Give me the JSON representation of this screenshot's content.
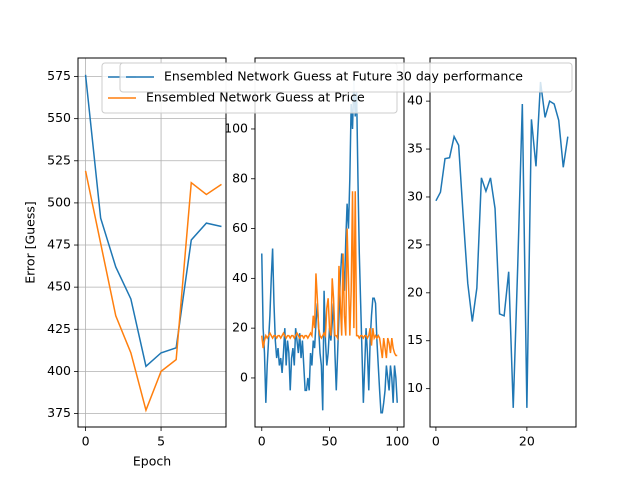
{
  "chart_data": [
    {
      "type": "line",
      "x": [
        0,
        1,
        2,
        3,
        4,
        5,
        6,
        7,
        8,
        9
      ],
      "series": [
        {
          "color": "#1f77b4",
          "values": [
            576,
            491,
            462,
            443,
            403,
            411,
            414,
            478,
            488,
            486
          ]
        },
        {
          "name": "Ensembled Network Guess at Price",
          "color": "#ff7f0e",
          "values": [
            519,
            476,
            433,
            411,
            377,
            400,
            407,
            512,
            505,
            511
          ]
        }
      ],
      "xlabel": "Epoch",
      "ylabel": "Error [Guess]",
      "xlim": [
        -0.5,
        9.3
      ],
      "xticks": [
        0,
        5
      ],
      "ylim": [
        367,
        586
      ],
      "yticks": [
        375,
        400,
        425,
        450,
        475,
        500,
        525,
        550,
        575
      ],
      "grid": true
    },
    {
      "type": "line",
      "x": [
        0,
        1,
        2,
        3,
        4,
        5,
        6,
        7,
        8,
        9,
        10,
        11,
        12,
        13,
        14,
        15,
        16,
        17,
        18,
        19,
        20,
        21,
        22,
        23,
        24,
        25,
        26,
        27,
        28,
        29,
        30,
        31,
        32,
        33,
        34,
        35,
        36,
        37,
        38,
        39,
        40,
        41,
        42,
        43,
        44,
        45,
        46,
        47,
        48,
        49,
        50,
        51,
        52,
        53,
        54,
        55,
        56,
        57,
        58,
        59,
        60,
        61,
        62,
        63,
        64,
        65,
        66,
        67,
        68,
        69,
        70,
        71,
        72,
        73,
        74,
        75,
        76,
        77,
        78,
        79,
        80,
        81,
        82,
        83,
        84,
        85,
        86,
        87,
        88,
        89,
        90,
        91,
        92,
        93,
        94,
        95,
        96,
        97,
        98,
        99,
        100
      ],
      "series": [
        {
          "color": "#1f77b4",
          "values": [
            50,
            20,
            10,
            -10,
            5,
            15,
            25,
            40,
            52,
            30,
            15,
            8,
            12,
            5,
            8,
            2,
            10,
            20,
            5,
            15,
            10,
            -5,
            8,
            12,
            5,
            20,
            15,
            10,
            18,
            8,
            15,
            5,
            -5,
            -5,
            0,
            -5,
            10,
            5,
            15,
            12,
            22,
            30,
            20,
            10,
            5,
            -13,
            35,
            15,
            5,
            10,
            20,
            15,
            22,
            30,
            10,
            -5,
            10,
            25,
            40,
            50,
            45,
            35,
            55,
            70,
            60,
            80,
            110,
            100,
            120,
            105,
            115,
            80,
            50,
            30,
            10,
            -10,
            5,
            20,
            10,
            -5,
            15,
            25,
            32,
            32,
            30,
            15,
            5,
            -5,
            -14,
            -14,
            -10,
            -5,
            5,
            0,
            -5,
            5,
            0,
            -10,
            5,
            0,
            -10
          ]
        },
        {
          "color": "#ff7f0e",
          "values": [
            17,
            12,
            15,
            17,
            16,
            17,
            18,
            17,
            16,
            17,
            17,
            16,
            17,
            17,
            16,
            17,
            18,
            17,
            16,
            17,
            17,
            16,
            17,
            17,
            16,
            17,
            18,
            17,
            16,
            17,
            17,
            16,
            17,
            17,
            16,
            17,
            18,
            17,
            25,
            20,
            42,
            32,
            20,
            17,
            16,
            17,
            18,
            17,
            28,
            32,
            20,
            17,
            40,
            32,
            17,
            17,
            16,
            45,
            30,
            17,
            50,
            25,
            17,
            60,
            40,
            17,
            35,
            75,
            20,
            75,
            17,
            17,
            16,
            17,
            17,
            16,
            17,
            17,
            16,
            17,
            20,
            13,
            20,
            16,
            17,
            16,
            17,
            16,
            12,
            8,
            16,
            12,
            8,
            16,
            14,
            10,
            16,
            12,
            10,
            9,
            9
          ]
        }
      ],
      "xlim": [
        -5,
        105
      ],
      "xticks": [
        0,
        50,
        100
      ],
      "ylim": [
        -19.7,
        128.5
      ],
      "yticks": [
        0,
        20,
        40,
        60,
        80,
        100
      ]
    },
    {
      "type": "line",
      "x": [
        0,
        1,
        2,
        3,
        4,
        5,
        6,
        7,
        8,
        9,
        10,
        11,
        12,
        13,
        14,
        15,
        16,
        17,
        18,
        19,
        20,
        21,
        22,
        23,
        24,
        25,
        26,
        27,
        28,
        29
      ],
      "series": [
        {
          "name": "Ensembled Network Guess at Future 30 day performance",
          "color": "#1f77b4",
          "values": [
            29.6,
            30.5,
            34,
            34.1,
            36.3,
            35.4,
            28,
            21,
            17,
            20.5,
            32,
            30.6,
            32,
            28.8,
            17.8,
            17.6,
            22.2,
            8,
            23,
            39.7,
            8,
            38.1,
            33.2,
            42,
            38.3,
            40,
            39.7,
            38,
            33.1,
            36.3
          ]
        }
      ],
      "xlim": [
        -1.3,
        30.8
      ],
      "xticks": [
        0,
        20
      ],
      "ylim": [
        6.0,
        44.5
      ],
      "yticks": [
        10,
        15,
        20,
        25,
        30,
        35,
        40
      ]
    }
  ]
}
